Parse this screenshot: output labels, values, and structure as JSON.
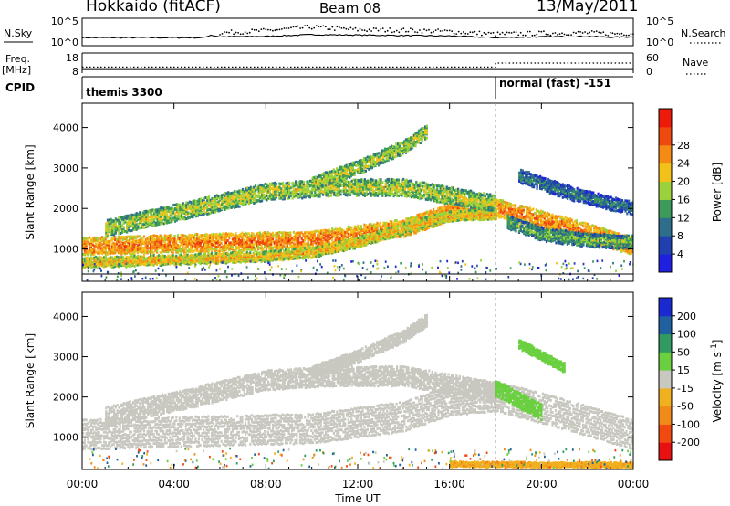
{
  "header": {
    "station": "Hokkaido (fitACF)",
    "beam": "Beam 08",
    "date": "13/May/2011"
  },
  "chart_data": [
    {
      "type": "line",
      "panel": "noise-sky-search",
      "labels": {
        "left": "N.Sky",
        "right": "N.Search"
      },
      "left_ticks": [
        "10^5",
        "10^0"
      ],
      "right_ticks": [
        "10^5",
        "10^0"
      ],
      "x": [
        0,
        5.3,
        5.6,
        6.0,
        8.0,
        10.0,
        12.0,
        14.0,
        16.0,
        18.0,
        20.0,
        22.0,
        23.0,
        24.0
      ],
      "sky": [
        1.2,
        1.2,
        1.8,
        1.4,
        1.5,
        1.9,
        1.8,
        1.7,
        1.6,
        1.2,
        1.4,
        1.5,
        1.3,
        1.4
      ],
      "search": [
        null,
        null,
        null,
        2.3,
        2.8,
        3.6,
        3.0,
        2.9,
        2.6,
        2.0,
        2.2,
        2.3,
        2.1,
        2.2
      ]
    },
    {
      "type": "line",
      "panel": "frequency-nave",
      "labels": {
        "left": "Freq.",
        "left_unit": "[MHz]",
        "right": "Nave"
      },
      "left_ticks": [
        "18",
        "8"
      ],
      "right_ticks": [
        "60",
        "0"
      ],
      "freq_mhz": [
        {
          "x": 0,
          "y": 10.0
        },
        {
          "x": 24,
          "y": 10.0
        }
      ],
      "nave": [
        {
          "x": 0,
          "y": 18
        },
        {
          "x": 18,
          "y": 18
        },
        {
          "x": 18,
          "y": 30
        },
        {
          "x": 24,
          "y": 30
        }
      ]
    },
    {
      "type": "table",
      "panel": "cpid",
      "label": "CPID",
      "segments": [
        {
          "start": 0,
          "end": 18,
          "name": "themis 3300"
        },
        {
          "start": 18,
          "end": 24,
          "name": "normal (fast) -151"
        }
      ]
    },
    {
      "type": "heatmap",
      "panel": "power",
      "ylabel": "Slant Range [km]",
      "yticks": [
        "1000",
        "2000",
        "3000",
        "4000"
      ],
      "ylim": [
        200,
        4600
      ],
      "xlim": [
        0,
        24
      ],
      "colorbar": {
        "label": "Power [dB]",
        "ticks": [
          "4",
          "8",
          "12",
          "16",
          "20",
          "24",
          "28"
        ]
      },
      "bands": [
        {
          "t": [
            0,
            6,
            10,
            14,
            16,
            18,
            21,
            24
          ],
          "r": [
            1050,
            1150,
            1200,
            1500,
            1900,
            2000,
            1550,
            1050
          ],
          "w": 400,
          "dB": 28
        },
        {
          "t": [
            0,
            4,
            8,
            10,
            12,
            14,
            16,
            18
          ],
          "r": [
            650,
            720,
            800,
            900,
            1150,
            1500,
            1800,
            1850
          ],
          "w": 220,
          "dB": 24
        },
        {
          "t": [
            1,
            5,
            8,
            11,
            14,
            16,
            18
          ],
          "r": [
            1500,
            2000,
            2400,
            2500,
            2500,
            2300,
            2100
          ],
          "w": 380,
          "dB": 20
        },
        {
          "t": [
            10,
            12,
            14,
            15
          ],
          "r": [
            2600,
            3000,
            3500,
            3900
          ],
          "w": 300,
          "dB": 20
        },
        {
          "t": [
            19,
            21,
            23,
            24
          ],
          "r": [
            2800,
            2400,
            2100,
            2000
          ],
          "w": 300,
          "dB": 12
        },
        {
          "t": [
            18.5,
            20,
            22,
            24
          ],
          "r": [
            1650,
            1350,
            1200,
            1150
          ],
          "w": 300,
          "dB": 16
        }
      ]
    },
    {
      "type": "heatmap",
      "panel": "velocity",
      "ylabel": "Slant Range [km]",
      "xlabel": "Time UT",
      "yticks": [
        "1000",
        "2000",
        "3000",
        "4000"
      ],
      "ylim": [
        200,
        4600
      ],
      "xlim": [
        0,
        24
      ],
      "xticks": [
        "00:00",
        "04:00",
        "08:00",
        "12:00",
        "16:00",
        "20:00",
        "00:00"
      ],
      "colorbar": {
        "label": "Velocity [m s^-1]",
        "ticks": [
          "200",
          "100",
          "50",
          "15",
          "-15",
          "-50",
          "-100",
          "-200"
        ]
      },
      "bands": [
        {
          "t": [
            0,
            6,
            10,
            14,
            16,
            18,
            21,
            24
          ],
          "r": [
            1050,
            1150,
            1200,
            1500,
            1900,
            2000,
            1550,
            1050
          ],
          "w": 700,
          "v": 0
        },
        {
          "t": [
            1,
            5,
            8,
            11,
            14,
            16,
            18
          ],
          "r": [
            1500,
            2000,
            2400,
            2500,
            2500,
            2300,
            2100
          ],
          "w": 450,
          "v": 0
        },
        {
          "t": [
            10,
            12,
            14,
            15
          ],
          "r": [
            2600,
            3000,
            3500,
            3900
          ],
          "w": 280,
          "v": 0
        },
        {
          "t": [
            18,
            19,
            20
          ],
          "r": [
            2200,
            1900,
            1600
          ],
          "w": 350,
          "v": 30
        },
        {
          "t": [
            19,
            20,
            21
          ],
          "r": [
            3300,
            3000,
            2700
          ],
          "w": 200,
          "v": 30
        },
        {
          "t": [
            16,
            20,
            24
          ],
          "r": [
            320,
            300,
            300
          ],
          "w": 100,
          "v": -40
        }
      ]
    }
  ]
}
